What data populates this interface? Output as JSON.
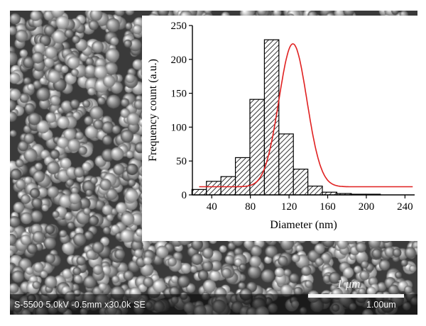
{
  "micrograph": {
    "instrument_info": "S-5500 5.0kV -0.5mm x30.0k SE",
    "scale_bar_label": "1 μm",
    "scale_readout": "1.00um"
  },
  "chart_data": {
    "type": "bar",
    "xlabel": "Diameter (nm)",
    "ylabel": "Frequency count (a.u.)",
    "xlim": [
      20,
      250
    ],
    "ylim": [
      0,
      250
    ],
    "xticks": [
      40,
      80,
      120,
      160,
      200,
      240
    ],
    "yticks": [
      0,
      50,
      100,
      150,
      200,
      250
    ],
    "bin_width": 15,
    "bin_centers": [
      27,
      42,
      57,
      72,
      87,
      102,
      117,
      132,
      147,
      162,
      177,
      192,
      207,
      222,
      237
    ],
    "values": [
      8,
      20,
      27,
      55,
      141,
      229,
      90,
      38,
      13,
      4,
      2,
      1,
      1,
      0,
      0
    ],
    "fit": {
      "type": "gaussian",
      "baseline": 12,
      "peak_x": 124,
      "peak_y": 223,
      "sigma": 14.5
    },
    "colors": {
      "bar_fill": "#ffffff",
      "bar_hatch": "#000000",
      "fit_line": "#e02020"
    },
    "grid": false
  }
}
